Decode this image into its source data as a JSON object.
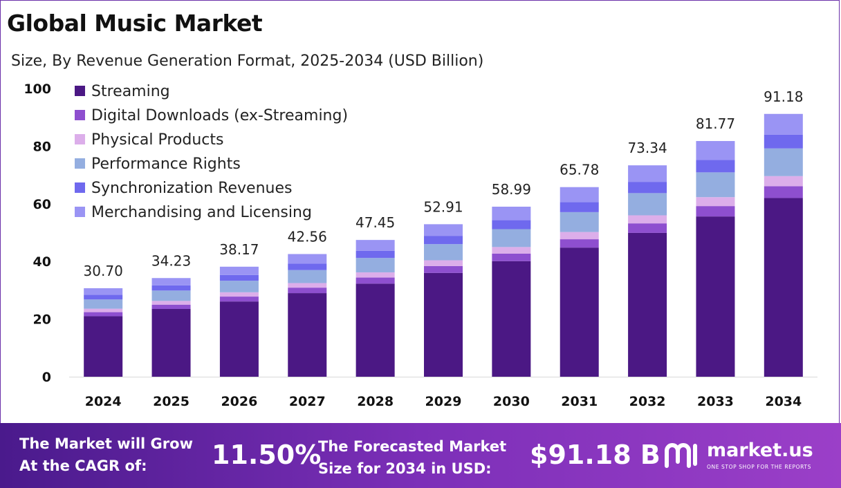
{
  "title": "Global Music Market",
  "subtitle": "Size, By Revenue Generation Format, 2025-2034 (USD Billion)",
  "colors": {
    "streaming": "#4b1884",
    "digital_downloads": "#8e4fcf",
    "physical": "#dcaeea",
    "performance": "#94aee0",
    "sync": "#6f69ee",
    "merch": "#9a94f4"
  },
  "chart_data": {
    "type": "bar",
    "stacked": true,
    "title": "Global Music Market",
    "subtitle": "Size, By Revenue Generation Format, 2025-2034 (USD Billion)",
    "categories": [
      "2024",
      "2025",
      "2026",
      "2027",
      "2028",
      "2029",
      "2030",
      "2031",
      "2032",
      "2033",
      "2034"
    ],
    "totals": [
      "30.70",
      "34.23",
      "38.17",
      "42.56",
      "47.45",
      "52.91",
      "58.99",
      "65.78",
      "73.34",
      "81.77",
      "91.18"
    ],
    "ylim": [
      0,
      100
    ],
    "yticks": [
      "0",
      "20",
      "40",
      "60",
      "80",
      "100"
    ],
    "legend_position": "top-left",
    "grid": false,
    "series": [
      {
        "name": "Streaming",
        "values": [
          21.0,
          23.5,
          26.1,
          29.0,
          32.3,
          36.0,
          40.1,
          44.8,
          49.9,
          55.6,
          62.0
        ]
      },
      {
        "name": "Digital Downloads (ex-Streaming)",
        "values": [
          1.4,
          1.5,
          1.7,
          1.9,
          2.1,
          2.4,
          2.6,
          2.9,
          3.3,
          3.6,
          4.1
        ]
      },
      {
        "name": "Physical Products",
        "values": [
          1.2,
          1.3,
          1.5,
          1.6,
          1.8,
          2.0,
          2.3,
          2.5,
          2.8,
          3.1,
          3.5
        ]
      },
      {
        "name": "Performance Rights",
        "values": [
          3.2,
          3.6,
          4.0,
          4.5,
          5.0,
          5.6,
          6.2,
          6.9,
          7.7,
          8.6,
          9.6
        ]
      },
      {
        "name": "Synchronization Revenues",
        "values": [
          1.6,
          1.8,
          2.0,
          2.2,
          2.5,
          2.8,
          3.1,
          3.5,
          3.9,
          4.3,
          4.8
        ]
      },
      {
        "name": "Merchandising and Licensing",
        "values": [
          2.3,
          2.53,
          2.87,
          3.36,
          3.75,
          4.11,
          4.69,
          5.18,
          5.74,
          6.57,
          7.18
        ]
      }
    ]
  },
  "footer": {
    "cagr_label_1": "The Market will Grow",
    "cagr_label_2": "At the CAGR of:",
    "cagr_value": "11.50%",
    "forecast_label_1": "The Forecasted Market",
    "forecast_label_2": "Size for 2034 in USD:",
    "forecast_value": "$91.18 B",
    "logo_text": "market.us",
    "logo_tagline": "ONE STOP SHOP FOR THE REPORTS"
  }
}
